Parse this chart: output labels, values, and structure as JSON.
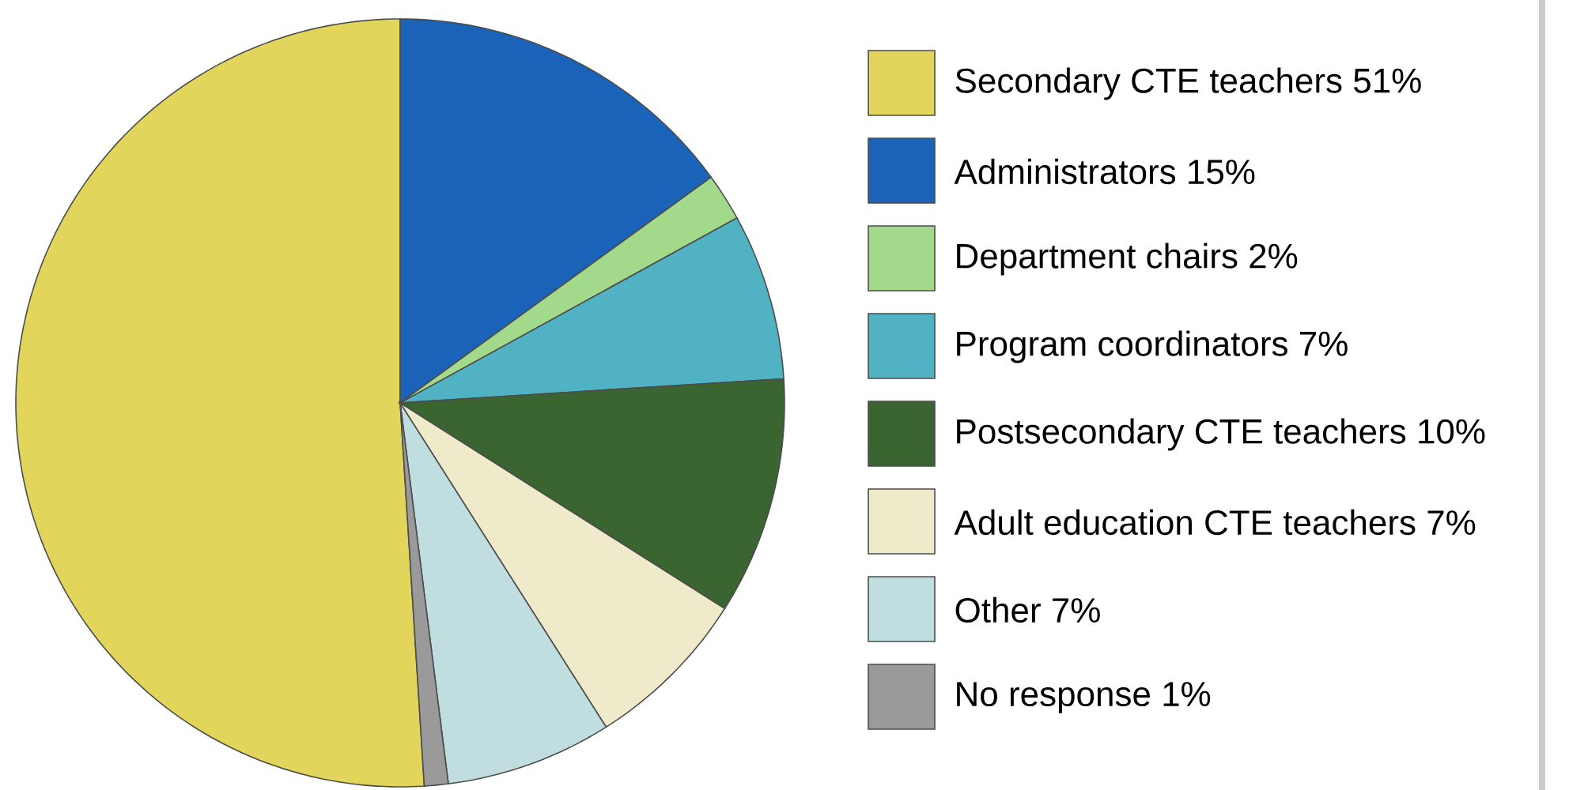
{
  "chart_data": {
    "type": "pie",
    "categories": [
      "Secondary CTE teachers 51%",
      "Administrators 15%",
      "Department chairs 2%",
      "Program coordinators 7%",
      "Postsecondary CTE teachers 10%",
      "Adult education CTE teachers 7%",
      "Other 7%",
      "No response 1%"
    ],
    "values": [
      51,
      15,
      2,
      7,
      10,
      7,
      7,
      1
    ],
    "colors": [
      "#e2d55c",
      "#1a63b8",
      "#a3d98a",
      "#50b2c2",
      "#3a6530",
      "#efebca",
      "#c0dde0",
      "#9a9a9a"
    ],
    "legend": "right"
  }
}
